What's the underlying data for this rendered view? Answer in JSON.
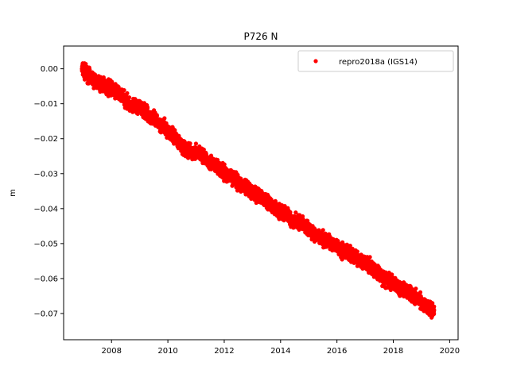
{
  "chart_data": {
    "type": "scatter",
    "title": "P726 N",
    "xlabel": "",
    "ylabel": "m",
    "xlim": [
      2006.3,
      2020.3
    ],
    "ylim": [
      -0.0775,
      0.0065
    ],
    "xticks": [
      2008,
      2010,
      2012,
      2014,
      2016,
      2018,
      2020
    ],
    "xtick_labels": [
      "2008",
      "2010",
      "2012",
      "2014",
      "2016",
      "2018",
      "2020"
    ],
    "yticks": [
      0.0,
      -0.01,
      -0.02,
      -0.03,
      -0.04,
      -0.05,
      -0.06,
      -0.07
    ],
    "ytick_labels": [
      "0.00",
      "−0.01",
      "−0.02",
      "−0.03",
      "−0.04",
      "−0.05",
      "−0.06",
      "−0.07"
    ],
    "grid": false,
    "legend_position": "top-right",
    "series": [
      {
        "name": "repro2018a (IGS14)",
        "color": "#ff0000",
        "marker": "dot",
        "x": [
          2006.95,
          2007.2,
          2007.5,
          2007.8,
          2008.1,
          2008.4,
          2008.7,
          2009.0,
          2009.3,
          2009.6,
          2009.9,
          2010.2,
          2010.5,
          2010.8,
          2011.1,
          2011.4,
          2011.7,
          2012.0,
          2012.3,
          2012.6,
          2012.9,
          2013.2,
          2013.5,
          2013.8,
          2014.1,
          2014.4,
          2014.7,
          2015.0,
          2015.3,
          2015.6,
          2015.9,
          2016.2,
          2016.5,
          2016.8,
          2017.1,
          2017.4,
          2017.7,
          2018.0,
          2018.3,
          2018.6,
          2018.9,
          2019.2,
          2019.45
        ],
        "y": [
          0.0,
          -0.002,
          -0.004,
          -0.005,
          -0.006,
          -0.008,
          -0.011,
          -0.011,
          -0.013,
          -0.015,
          -0.017,
          -0.019,
          -0.022,
          -0.024,
          -0.024,
          -0.026,
          -0.028,
          -0.03,
          -0.031,
          -0.033,
          -0.035,
          -0.036,
          -0.038,
          -0.04,
          -0.041,
          -0.043,
          -0.044,
          -0.046,
          -0.048,
          -0.049,
          -0.05,
          -0.052,
          -0.053,
          -0.055,
          -0.056,
          -0.058,
          -0.06,
          -0.061,
          -0.063,
          -0.064,
          -0.066,
          -0.068,
          -0.069
        ],
        "spread": 0.0022
      }
    ]
  }
}
